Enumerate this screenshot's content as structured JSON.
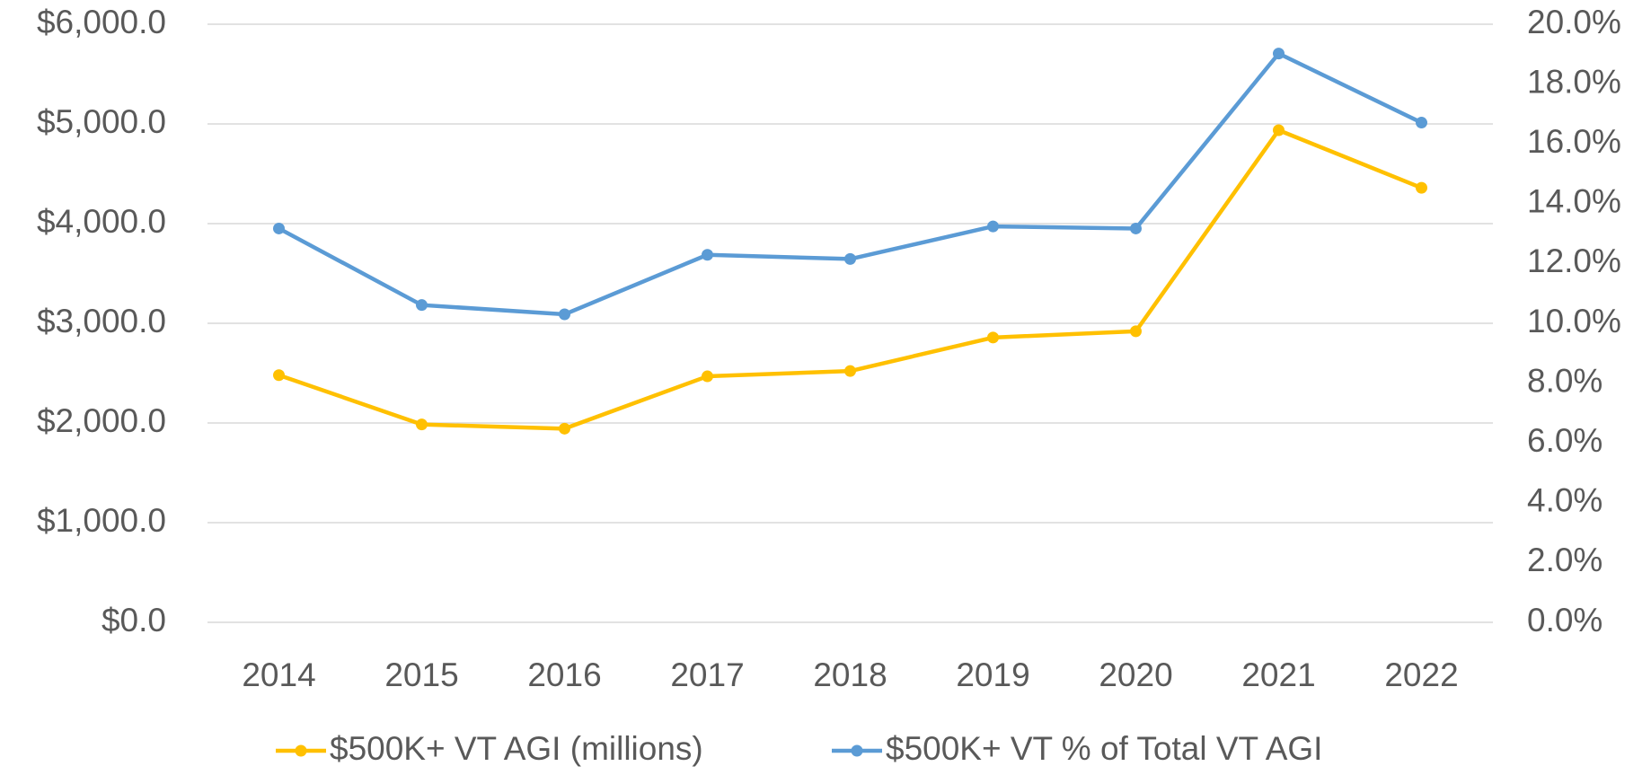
{
  "chart_data": {
    "type": "line",
    "categories": [
      "2014",
      "2015",
      "2016",
      "2017",
      "2018",
      "2019",
      "2020",
      "2021",
      "2022"
    ],
    "series": [
      {
        "name": "$500K+ VT AGI (millions)",
        "color": "#FFC000",
        "values": [
          2480,
          1985,
          1943,
          2468,
          2521,
          2857,
          2920,
          4937,
          4359
        ]
      },
      {
        "name": "$500K+ VT % of Total VT AGI",
        "color": "#5B9BD5",
        "axis": "y2",
        "values": [
          13.17,
          10.61,
          10.3,
          12.29,
          12.15,
          13.24,
          13.17,
          19.02,
          16.71
        ]
      }
    ],
    "ylim": [
      0,
      6000
    ],
    "yticks": [
      {
        "value": 0,
        "label": "$0.0"
      },
      {
        "value": 1000,
        "label": "$1,000.0"
      },
      {
        "value": 2000,
        "label": "$2,000.0"
      },
      {
        "value": 3000,
        "label": "$3,000.0"
      },
      {
        "value": 4000,
        "label": "$4,000.0"
      },
      {
        "value": 5000,
        "label": "$5,000.0"
      },
      {
        "value": 6000,
        "label": "$6,000.0"
      }
    ],
    "y2lim": [
      0,
      20
    ],
    "y2ticks": [
      {
        "value": 0,
        "label": "0.0%"
      },
      {
        "value": 2,
        "label": "2.0%"
      },
      {
        "value": 4,
        "label": "4.0%"
      },
      {
        "value": 6,
        "label": "6.0%"
      },
      {
        "value": 8,
        "label": "8.0%"
      },
      {
        "value": 10,
        "label": "10.0%"
      },
      {
        "value": 12,
        "label": "12.0%"
      },
      {
        "value": 14,
        "label": "14.0%"
      },
      {
        "value": 16,
        "label": "16.0%"
      },
      {
        "value": 18,
        "label": "18.0%"
      },
      {
        "value": 20,
        "label": "20.0%"
      }
    ],
    "grid": true,
    "legend": "bottom"
  }
}
